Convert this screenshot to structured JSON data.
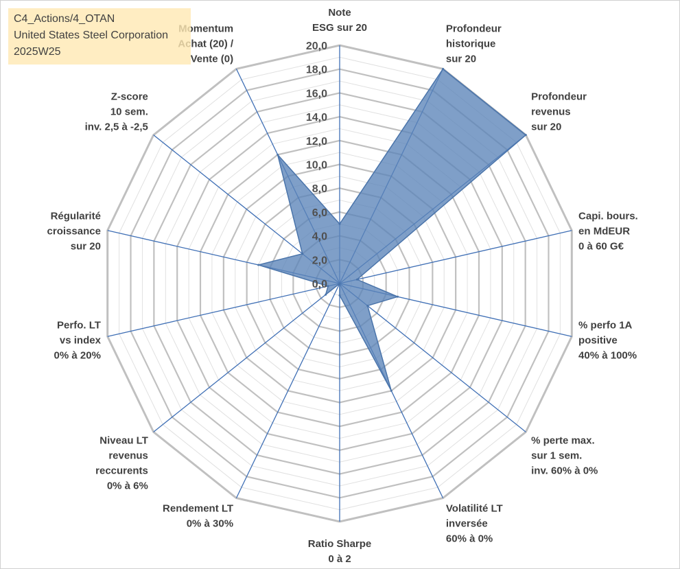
{
  "info": {
    "line1": "C4_Actions/4_OTAN",
    "line2": "United States Steel Corporation",
    "line3": "2025W25"
  },
  "chart_data": {
    "type": "radar",
    "title": "",
    "rlim": [
      0,
      20
    ],
    "tick_labels": [
      "0,0",
      "2,0",
      "4,0",
      "6,0",
      "8,0",
      "10,0",
      "12,0",
      "14,0",
      "16,0",
      "18,0",
      "20,0"
    ],
    "axes": [
      {
        "label": [
          "Note",
          "ESG sur 20"
        ],
        "value": 5
      },
      {
        "label": [
          "Profondeur",
          "historique",
          "sur 20"
        ],
        "value": 20
      },
      {
        "label": [
          "Profondeur",
          "revenus",
          "sur 20"
        ],
        "value": 20
      },
      {
        "label": [
          "Capi. bours.",
          "en MdEUR",
          "0 à 60 G€"
        ],
        "value": 1.5
      },
      {
        "label": [
          "% perfo 1A",
          "positive",
          "40% à 100%"
        ],
        "value": 5
      },
      {
        "label": [
          "% perte max.",
          "sur 1 sem.",
          "inv. 60% à 0%"
        ],
        "value": 3
      },
      {
        "label": [
          "Volatilité LT",
          "inversée",
          "60% à 0%"
        ],
        "value": 10
      },
      {
        "label": [
          "Ratio Sharpe",
          "0 à 2"
        ],
        "value": 1
      },
      {
        "label": [
          "Rendement LT",
          "0% à 30%"
        ],
        "value": 0
      },
      {
        "label": [
          "Niveau LT",
          "revenus",
          "reccurents",
          "0% à 6%"
        ],
        "value": 1.5
      },
      {
        "label": [
          "Perfo. LT",
          "vs index",
          "0% à 20%"
        ],
        "value": 1
      },
      {
        "label": [
          "Régularité",
          "croissance",
          "sur 20"
        ],
        "value": 7
      },
      {
        "label": [
          "Z-score",
          "10 sem.",
          "inv. 2,5 à -2,5"
        ],
        "value": 4
      },
      {
        "label": [
          "Momentum",
          "Achat (20) /",
          "Vente (0)"
        ],
        "value": 12
      }
    ],
    "colors": {
      "fill": "#5b84b8",
      "stroke": "#4a74aa",
      "spokes": "#3f6fb5",
      "rings": "#c0c0c0",
      "minor_rings": "#e0e0e0"
    }
  }
}
